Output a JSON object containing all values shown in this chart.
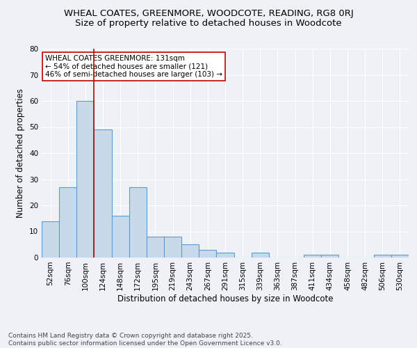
{
  "title_line1": "WHEAL COATES, GREENMORE, WOODCOTE, READING, RG8 0RJ",
  "title_line2": "Size of property relative to detached houses in Woodcote",
  "bar_labels": [
    "52sqm",
    "76sqm",
    "100sqm",
    "124sqm",
    "148sqm",
    "172sqm",
    "195sqm",
    "219sqm",
    "243sqm",
    "267sqm",
    "291sqm",
    "315sqm",
    "339sqm",
    "363sqm",
    "387sqm",
    "411sqm",
    "434sqm",
    "458sqm",
    "482sqm",
    "506sqm",
    "530sqm"
  ],
  "bar_values": [
    14,
    27,
    60,
    49,
    16,
    27,
    8,
    8,
    5,
    3,
    2,
    0,
    2,
    0,
    0,
    1,
    1,
    0,
    0,
    1,
    1
  ],
  "bar_color": "#c8d9ea",
  "bar_edge_color": "#5b9bd5",
  "xlabel": "Distribution of detached houses by size in Woodcote",
  "ylabel": "Number of detached properties",
  "ylim": [
    0,
    80
  ],
  "yticks": [
    0,
    10,
    20,
    30,
    40,
    50,
    60,
    70,
    80
  ],
  "vline_x": 2.5,
  "vline_color": "#c00000",
  "annotation_text": "WHEAL COATES GREENMORE: 131sqm\n← 54% of detached houses are smaller (121)\n46% of semi-detached houses are larger (103) →",
  "annotation_box_color": "#ffffff",
  "annotation_border_color": "#c00000",
  "footer_line1": "Contains HM Land Registry data © Crown copyright and database right 2025.",
  "footer_line2": "Contains public sector information licensed under the Open Government Licence v3.0.",
  "background_color": "#eef2f7",
  "grid_color": "#ffffff",
  "title_fontsize": 9.5,
  "subtitle_fontsize": 9.5,
  "axis_label_fontsize": 8.5,
  "tick_fontsize": 7.5,
  "annotation_fontsize": 7.5,
  "footer_fontsize": 6.5
}
